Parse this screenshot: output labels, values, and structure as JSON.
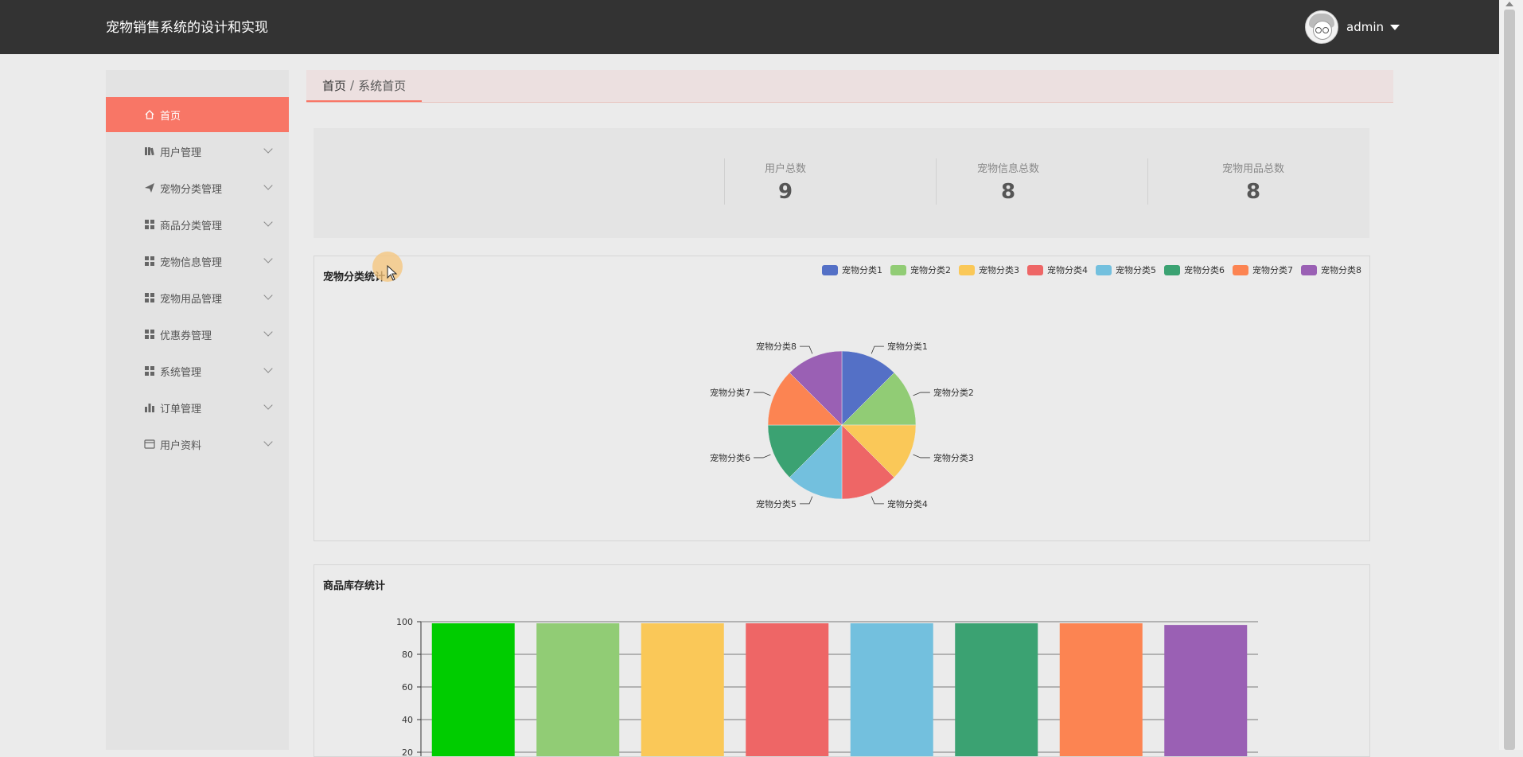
{
  "header": {
    "app_title": "宠物销售系统的设计和实现",
    "username": "admin",
    "bg": "#333333"
  },
  "sidebar": {
    "items": [
      {
        "label": "首页",
        "icon": "home-icon",
        "active": true
      },
      {
        "label": "用户管理",
        "icon": "books-icon"
      },
      {
        "label": "宠物分类管理",
        "icon": "paper-plane-icon"
      },
      {
        "label": "商品分类管理",
        "icon": "grid-icon"
      },
      {
        "label": "宠物信息管理",
        "icon": "grid-icon"
      },
      {
        "label": "宠物用品管理",
        "icon": "grid-icon"
      },
      {
        "label": "优惠券管理",
        "icon": "grid-icon"
      },
      {
        "label": "系统管理",
        "icon": "grid-icon"
      },
      {
        "label": "订单管理",
        "icon": "bar-chart-icon"
      },
      {
        "label": "用户资料",
        "icon": "id-card-icon"
      }
    ],
    "active_color": "#f87666"
  },
  "breadcrumb": {
    "home": "首页",
    "separator": "/",
    "current": "系统首页"
  },
  "stats": [
    {
      "label": "用户总数",
      "value": "9"
    },
    {
      "label": "宠物信息总数",
      "value": "8"
    },
    {
      "label": "宠物用品总数",
      "value": "8"
    }
  ],
  "pie_panel": {
    "title": "宠物分类统计"
  },
  "bar_panel": {
    "title": "商品库存统计"
  },
  "chart_data": [
    {
      "type": "pie",
      "title": "宠物分类统计",
      "legend_position": "top-right",
      "series": [
        {
          "name": "宠物分类1",
          "value": 1,
          "color": "#5470c6"
        },
        {
          "name": "宠物分类2",
          "value": 1,
          "color": "#91cc75"
        },
        {
          "name": "宠物分类3",
          "value": 1,
          "color": "#fac858"
        },
        {
          "name": "宠物分类4",
          "value": 1,
          "color": "#ee6666"
        },
        {
          "name": "宠物分类5",
          "value": 1,
          "color": "#73c0de"
        },
        {
          "name": "宠物分类6",
          "value": 1,
          "color": "#3ba272"
        },
        {
          "name": "宠物分类7",
          "value": 1,
          "color": "#fc8452"
        },
        {
          "name": "宠物分类8",
          "value": 1,
          "color": "#9a60b4"
        }
      ]
    },
    {
      "type": "bar",
      "title": "商品库存统计",
      "values": [
        99,
        99,
        99,
        99,
        99,
        99,
        99,
        98
      ],
      "colors": [
        "#00cc00",
        "#91cc75",
        "#fac858",
        "#ee6666",
        "#73c0de",
        "#3ba272",
        "#fc8452",
        "#9a60b4"
      ],
      "ylim": [
        0,
        100
      ],
      "yticks": [
        "100",
        "80",
        "60",
        "40",
        "20"
      ],
      "grid": true
    }
  ]
}
